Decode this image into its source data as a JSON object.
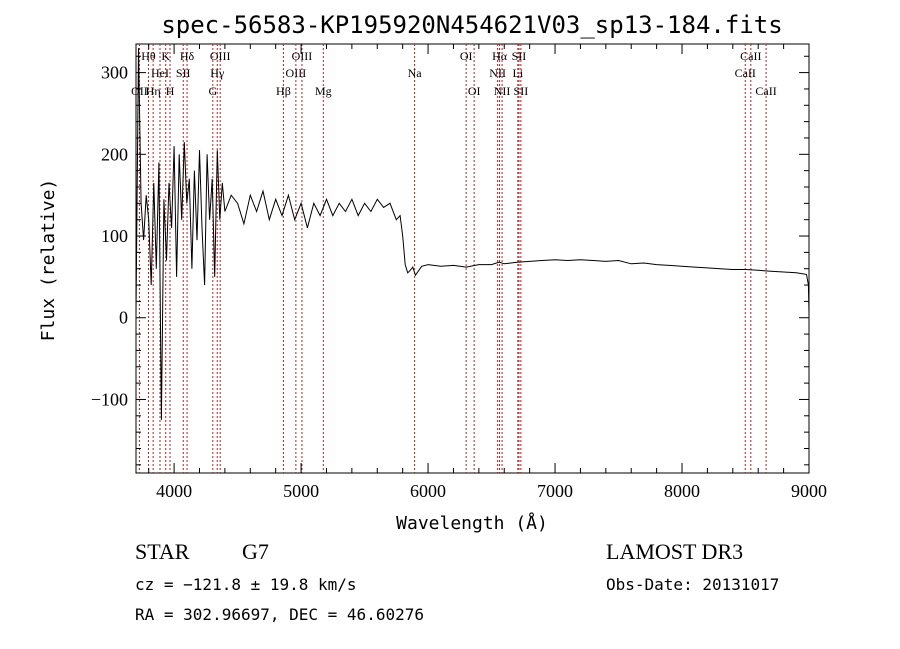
{
  "chart_data": {
    "type": "line",
    "title": "spec-56583-KP195920N454621V03_sp13-184.fits",
    "xlabel": "Wavelength (Å)",
    "ylabel": "Flux (relative)",
    "xlim": [
      3700,
      9000
    ],
    "ylim": [
      -190,
      335
    ],
    "xticks": [
      4000,
      5000,
      6000,
      7000,
      8000,
      9000
    ],
    "xtick_labels": [
      "4000",
      "5000",
      "6000",
      "7000",
      "8000",
      "9000"
    ],
    "yticks": [
      -100,
      0,
      100,
      200,
      300
    ],
    "ytick_labels": [
      "−100",
      "0",
      "100",
      "200",
      "300"
    ],
    "grid": false,
    "line_color": "#000000",
    "marker_color": "#b22222",
    "series": [
      {
        "x": [
          3700,
          3720,
          3740,
          3760,
          3780,
          3800,
          3820,
          3840,
          3860,
          3880,
          3900,
          3920,
          3940,
          3960,
          3980,
          4000,
          4020,
          4040,
          4060,
          4080,
          4100,
          4120,
          4140,
          4160,
          4180,
          4200,
          4220,
          4240,
          4260,
          4280,
          4300,
          4320,
          4340,
          4360,
          4380,
          4400,
          4450,
          4500,
          4550,
          4600,
          4650,
          4700,
          4750,
          4800,
          4850,
          4900,
          4950,
          5000,
          5050,
          5100,
          5150,
          5200,
          5250,
          5300,
          5350,
          5400,
          5450,
          5500,
          5550,
          5600,
          5650,
          5700,
          5750,
          5780,
          5800,
          5820,
          5840,
          5860,
          5880,
          5900,
          5950,
          6000,
          6100,
          6200,
          6300,
          6400,
          6500,
          6560,
          6600,
          6700,
          6800,
          6900,
          7000,
          7100,
          7200,
          7300,
          7400,
          7500,
          7600,
          7700,
          7800,
          7900,
          8000,
          8100,
          8200,
          8300,
          8400,
          8500,
          8600,
          8700,
          8800,
          8900,
          8980,
          8995,
          9000
        ],
        "values": [
          5,
          330,
          140,
          95,
          150,
          120,
          40,
          165,
          60,
          190,
          -125,
          145,
          70,
          165,
          110,
          210,
          50,
          200,
          120,
          215,
          140,
          170,
          60,
          180,
          95,
          205,
          110,
          40,
          200,
          120,
          170,
          50,
          205,
          120,
          165,
          130,
          150,
          140,
          115,
          150,
          130,
          155,
          120,
          145,
          125,
          150,
          120,
          140,
          110,
          140,
          125,
          145,
          125,
          140,
          130,
          145,
          125,
          140,
          130,
          145,
          135,
          140,
          120,
          125,
          100,
          65,
          55,
          58,
          62,
          52,
          63,
          65,
          63,
          64,
          62,
          65,
          65,
          68,
          66,
          68,
          69,
          70,
          71,
          70,
          71,
          70,
          69,
          70,
          66,
          67,
          65,
          64,
          63,
          62,
          61,
          60,
          59,
          59,
          58,
          57,
          56,
          55,
          53,
          40,
          5
        ]
      }
    ],
    "spectral_lines": [
      {
        "label": "OII",
        "x": 3727,
        "row": 2
      },
      {
        "label": "Hθ",
        "x": 3798,
        "row": 0
      },
      {
        "label": "Hη",
        "x": 3835,
        "row": 2
      },
      {
        "label": "HeI",
        "x": 3889,
        "row": 1
      },
      {
        "label": "K",
        "x": 3934,
        "row": 0
      },
      {
        "label": "H",
        "x": 3968,
        "row": 2
      },
      {
        "label": "SII",
        "x": 4072,
        "row": 1
      },
      {
        "label": "Hδ",
        "x": 4102,
        "row": 0
      },
      {
        "label": "G",
        "x": 4305,
        "row": 2
      },
      {
        "label": "Hγ",
        "x": 4340,
        "row": 1
      },
      {
        "label": "OIII",
        "x": 4363,
        "row": 0
      },
      {
        "label": "Hβ",
        "x": 4861,
        "row": 2
      },
      {
        "label": "OIII",
        "x": 4959,
        "row": 1
      },
      {
        "label": "OIII",
        "x": 5007,
        "row": 0
      },
      {
        "label": "Mg",
        "x": 5175,
        "row": 2
      },
      {
        "label": "Na",
        "x": 5894,
        "row": 1
      },
      {
        "label": "OI",
        "x": 6300,
        "row": 0
      },
      {
        "label": "OI",
        "x": 6363,
        "row": 2
      },
      {
        "label": "NII",
        "x": 6548,
        "row": 1
      },
      {
        "label": "Hα",
        "x": 6563,
        "row": 0
      },
      {
        "label": "NII",
        "x": 6583,
        "row": 2
      },
      {
        "label": "Li",
        "x": 6707,
        "row": 1
      },
      {
        "label": "SII",
        "x": 6716,
        "row": 0
      },
      {
        "label": "SII",
        "x": 6731,
        "row": 2
      },
      {
        "label": "CaII",
        "x": 8498,
        "row": 1
      },
      {
        "label": "CaII",
        "x": 8542,
        "row": 0
      },
      {
        "label": "CaII",
        "x": 8662,
        "row": 2
      }
    ]
  },
  "info": {
    "object_class": "STAR",
    "subclass": "G7",
    "survey": "LAMOST DR3",
    "redshift": "cz = −121.8 ± 19.8 km/s",
    "obs_date": "Obs-Date: 20131017",
    "coordinates": "RA = 302.96697, DEC =  46.60276"
  }
}
